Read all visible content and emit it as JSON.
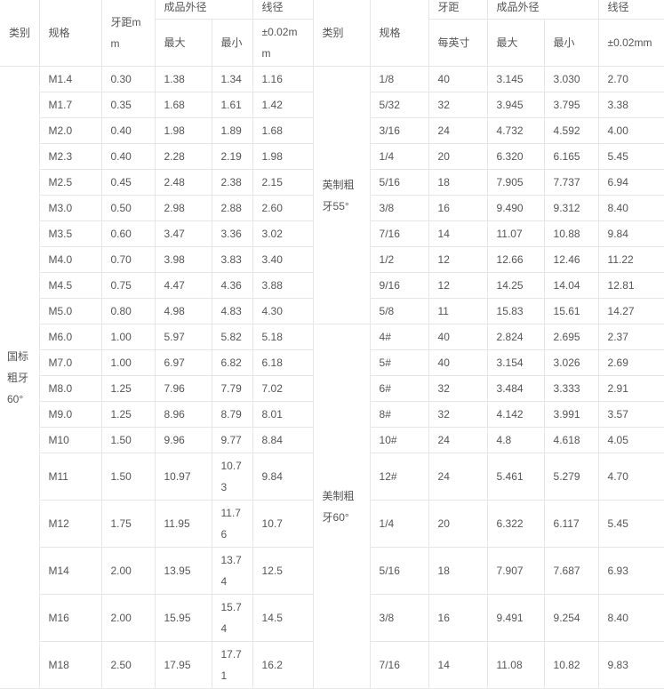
{
  "header": {
    "category": "类别",
    "spec": "规格",
    "pitch_mm": "牙距mm",
    "outer_diameter": "成品外径",
    "max": "最大",
    "min": "最小",
    "wire_diameter": "线径",
    "tolerance_left": "±0.02mm",
    "category_right": "类别",
    "spec_right": "规格",
    "pitch_right": "牙距",
    "per_inch": "每英寸",
    "outer_diameter_right": "成品外径",
    "max_right": "最大",
    "min_right": "最小",
    "wire_diameter_right": "线径",
    "tolerance_right": "±0.02mm"
  },
  "categories": {
    "metric": "国标粗牙60°",
    "imperial": "英制粗牙55°",
    "american": "美制粗牙60°"
  },
  "rows": [
    {
      "left": [
        "M1.4",
        "0.30",
        "1.38",
        "1.34",
        "1.16"
      ],
      "right": [
        "1/8",
        "40",
        "3.145",
        "3.030",
        "2.70"
      ]
    },
    {
      "left": [
        "M1.7",
        "0.35",
        "1.68",
        "1.61",
        "1.42"
      ],
      "right": [
        "5/32",
        "32",
        "3.945",
        "3.795",
        "3.38"
      ]
    },
    {
      "left": [
        "M2.0",
        "0.40",
        "1.98",
        "1.89",
        "1.68"
      ],
      "right": [
        "3/16",
        "24",
        "4.732",
        "4.592",
        "4.00"
      ]
    },
    {
      "left": [
        "M2.3",
        "0.40",
        "2.28",
        "2.19",
        "1.98"
      ],
      "right": [
        "1/4",
        "20",
        "6.320",
        "6.165",
        "5.45"
      ]
    },
    {
      "left": [
        "M2.5",
        "0.45",
        "2.48",
        "2.38",
        "2.15"
      ],
      "right": [
        "5/16",
        "18",
        "7.905",
        "7.737",
        "6.94"
      ]
    },
    {
      "left": [
        "M3.0",
        "0.50",
        "2.98",
        "2.88",
        "2.60"
      ],
      "right": [
        "3/8",
        "16",
        "9.490",
        "9.312",
        "8.40"
      ]
    },
    {
      "left": [
        "M3.5",
        "0.60",
        "3.47",
        "3.36",
        "3.02"
      ],
      "right": [
        "7/16",
        "14",
        "11.07",
        "10.88",
        "9.84"
      ]
    },
    {
      "left": [
        "M4.0",
        "0.70",
        "3.98",
        "3.83",
        "3.40"
      ],
      "right": [
        "1/2",
        "12",
        "12.66",
        "12.46",
        "11.22"
      ]
    },
    {
      "left": [
        "M4.5",
        "0.75",
        "4.47",
        "4.36",
        "3.88"
      ],
      "right": [
        "9/16",
        "12",
        "14.25",
        "14.04",
        "12.81"
      ]
    },
    {
      "left": [
        "M5.0",
        "0.80",
        "4.98",
        "4.83",
        "4.30"
      ],
      "right": [
        "5/8",
        "11",
        "15.83",
        "15.61",
        "14.27"
      ]
    },
    {
      "left": [
        "M6.0",
        "1.00",
        "5.97",
        "5.82",
        "5.18"
      ],
      "right": [
        "4#",
        "40",
        "2.824",
        "2.695",
        "2.37"
      ]
    },
    {
      "left": [
        "M7.0",
        "1.00",
        "6.97",
        "6.82",
        "6.18"
      ],
      "right": [
        "5#",
        "40",
        "3.154",
        "3.026",
        "2.69"
      ]
    },
    {
      "left": [
        "M8.0",
        "1.25",
        "7.96",
        "7.79",
        "7.02"
      ],
      "right": [
        "6#",
        "32",
        "3.484",
        "3.333",
        "2.91"
      ]
    },
    {
      "left": [
        "M9.0",
        "1.25",
        "8.96",
        "8.79",
        "8.01"
      ],
      "right": [
        "8#",
        "32",
        "4.142",
        "3.991",
        "3.57"
      ]
    },
    {
      "left": [
        "M10",
        "1.50",
        "9.96",
        "9.77",
        "8.84"
      ],
      "right": [
        "10#",
        "24",
        "4.8",
        "4.618",
        "4.05"
      ]
    },
    {
      "left": [
        "M11",
        "1.50",
        "10.97",
        "10.73",
        "9.84"
      ],
      "right": [
        "12#",
        "24",
        "5.461",
        "5.279",
        "4.70"
      ]
    },
    {
      "left": [
        "M12",
        "1.75",
        "11.95",
        "11.76",
        "10.7"
      ],
      "right": [
        "1/4",
        "20",
        "6.322",
        "6.117",
        "5.45"
      ]
    },
    {
      "left": [
        "M14",
        "2.00",
        "13.95",
        "13.74",
        "12.5"
      ],
      "right": [
        "5/16",
        "18",
        "7.907",
        "7.687",
        "6.93"
      ]
    },
    {
      "left": [
        "M16",
        "2.00",
        "15.95",
        "15.74",
        "14.5"
      ],
      "right": [
        "3/8",
        "16",
        "9.491",
        "9.254",
        "8.40"
      ]
    },
    {
      "left": [
        "M18",
        "2.50",
        "17.95",
        "17.71",
        "16.2"
      ],
      "right": [
        "7/16",
        "14",
        "11.08",
        "10.82",
        "9.83"
      ]
    }
  ]
}
